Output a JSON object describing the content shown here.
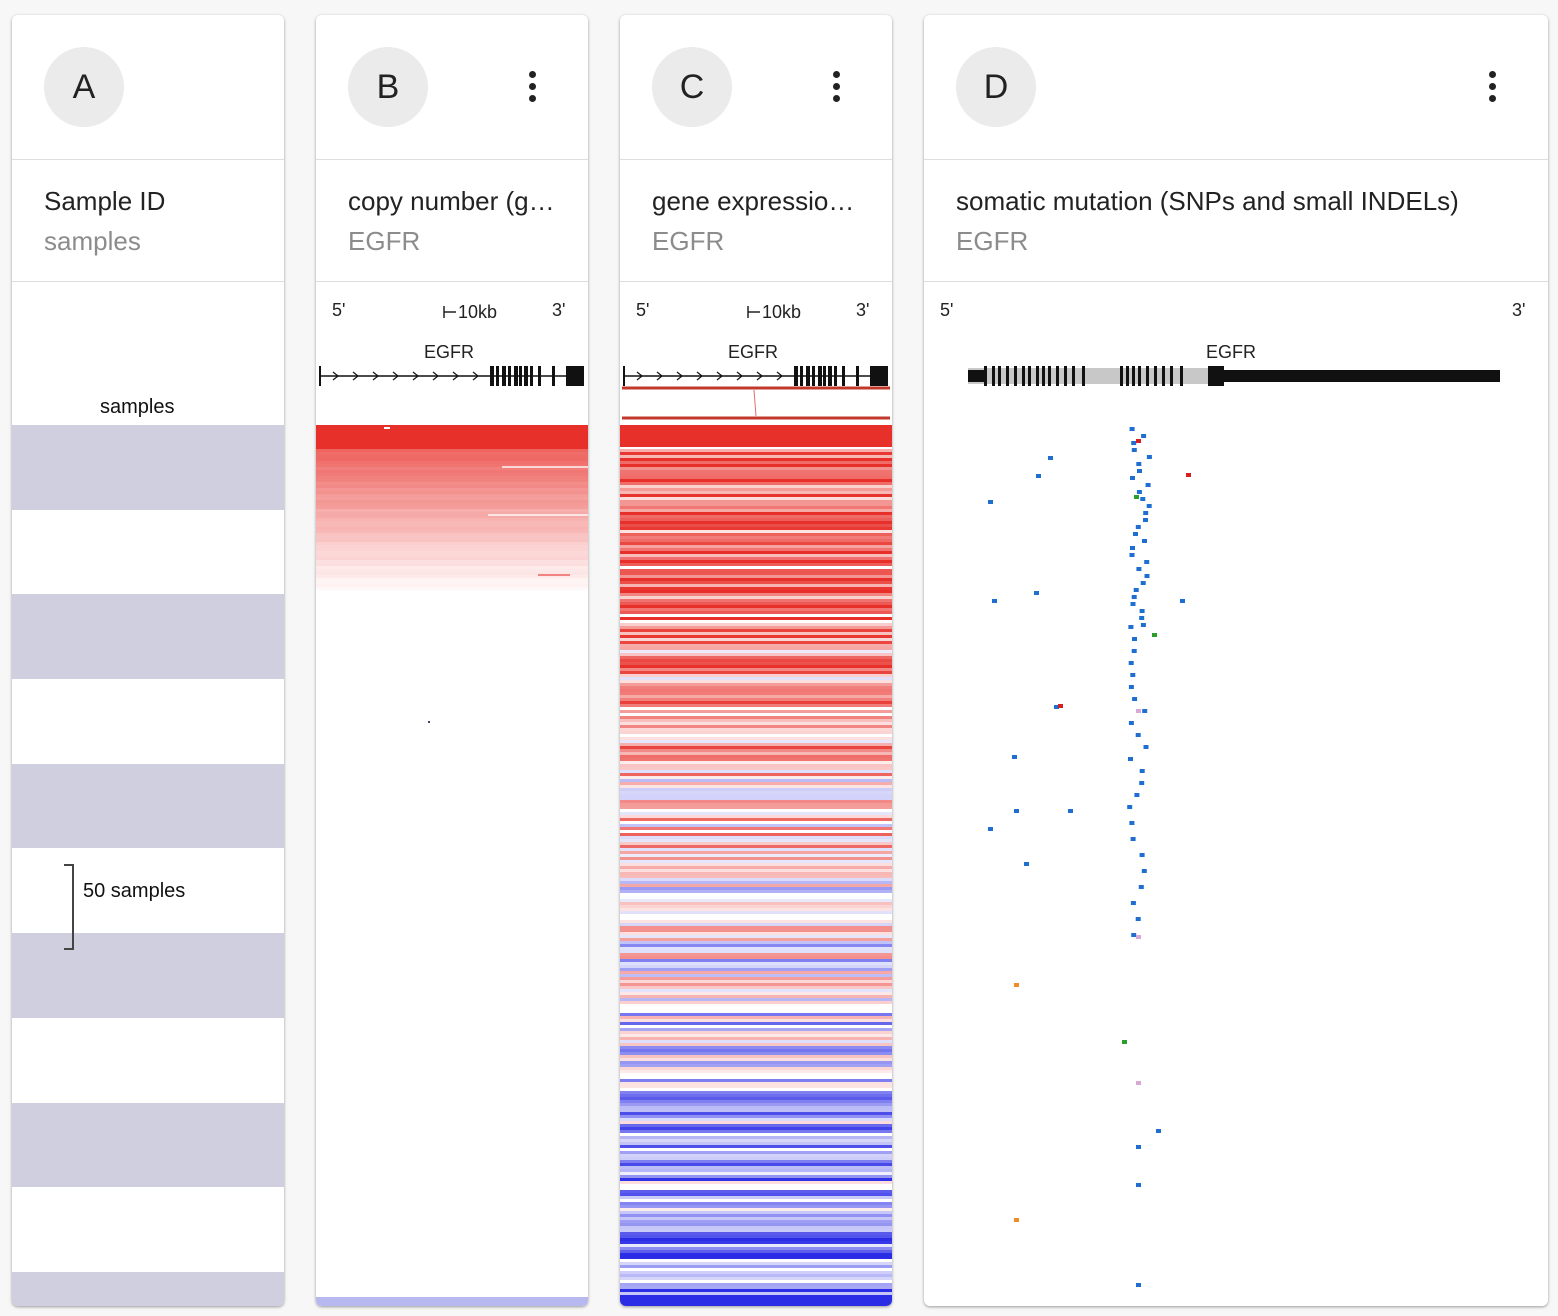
{
  "columns": [
    {
      "avatar": "A",
      "title": "Sample ID",
      "subtitle": "samples"
    },
    {
      "avatar": "B",
      "title": "copy number (gene level)",
      "subtitle": "EGFR"
    },
    {
      "avatar": "C",
      "title": "gene expression RNAseq",
      "subtitle": "EGFR"
    },
    {
      "avatar": "D",
      "title": "somatic mutation (SNPs and small INDELs)",
      "subtitle": "EGFR"
    }
  ],
  "samples_panel": {
    "axis_label": "samples",
    "scale_label": "50 samples"
  },
  "gene_track": {
    "gene": "EGFR",
    "five_prime": "5'",
    "three_prime": "3'",
    "scale_label": "10kb"
  },
  "colors": {
    "stripe": "#cfcfdf",
    "amplification": "#e8302a",
    "high_expression": "#e8302a",
    "low_expression": "#2b2ce6",
    "mutation_blue": "#1f6fd0",
    "mutation_red": "#d42020",
    "mutation_green": "#2aa02a",
    "mutation_orange": "#f08c28",
    "mutation_pink": "#d8a8d8"
  }
}
